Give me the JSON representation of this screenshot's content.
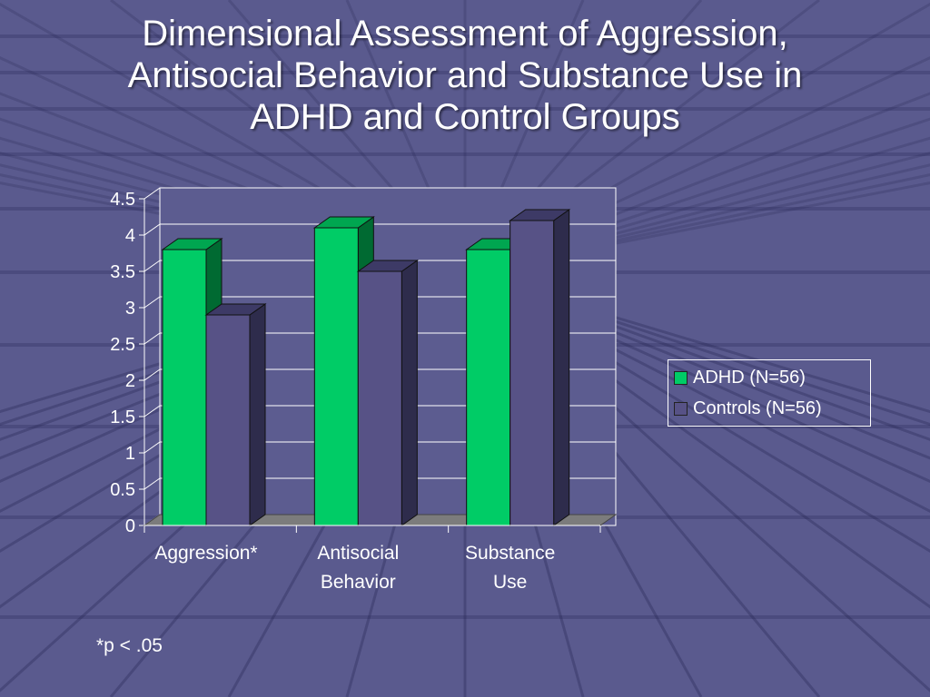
{
  "slide": {
    "title_lines": [
      "Dimensional Assessment of Aggression,",
      "Antisocial Behavior and Substance Use in",
      "ADHD and Control Groups"
    ],
    "footnote": "*p < .05"
  },
  "colors": {
    "background": "#5a5a8e",
    "adhd": "#00cc66",
    "controls": "#575286",
    "text": "#ffffff"
  },
  "chart_data": {
    "type": "bar",
    "categories": [
      [
        "Aggression*"
      ],
      [
        "Antisocial",
        "Behavior"
      ],
      [
        "Substance",
        "Use"
      ]
    ],
    "series": [
      {
        "name": "ADHD (N=56)",
        "values": [
          3.8,
          4.1,
          3.8
        ]
      },
      {
        "name": "Controls (N=56)",
        "values": [
          2.9,
          3.5,
          4.2
        ]
      }
    ],
    "yticks": [
      "0",
      "0.5",
      "1",
      "1.5",
      "2",
      "2.5",
      "3",
      "3.5",
      "4",
      "4.5"
    ],
    "ylim": [
      0,
      4.5
    ],
    "xlabel": "",
    "ylabel": "",
    "grid": true,
    "legend_position": "right",
    "style": "3d-column"
  }
}
